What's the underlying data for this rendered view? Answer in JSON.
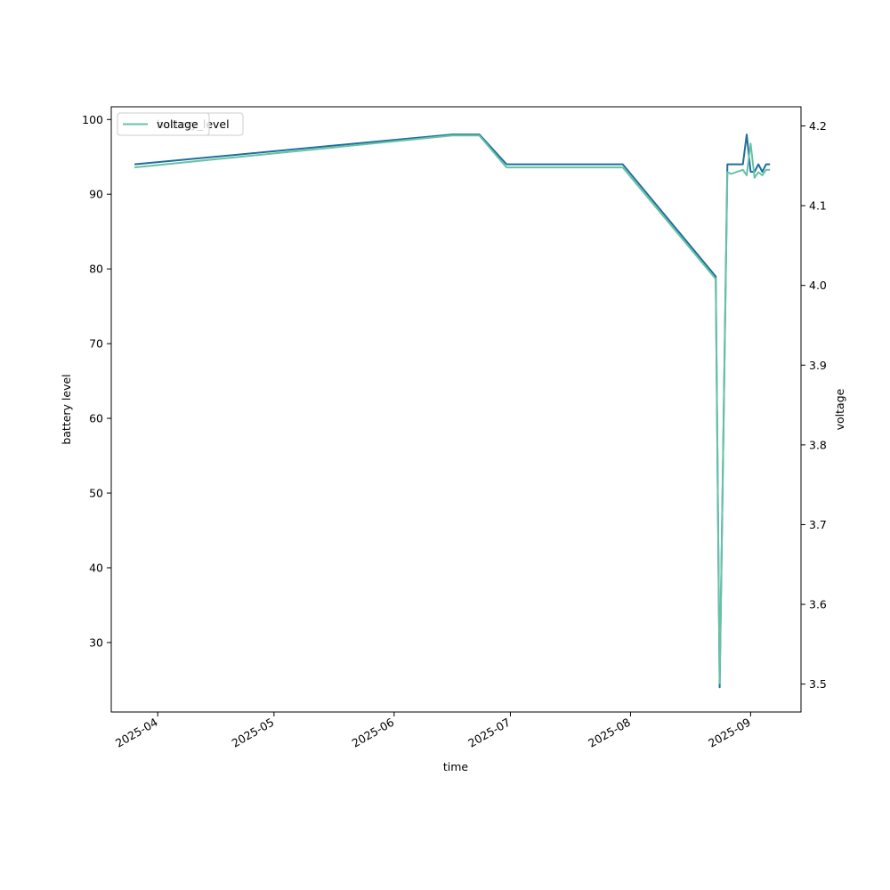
{
  "chart_data": {
    "type": "line",
    "xlabel": "time",
    "ylabel_left": "battery level",
    "ylabel_right": "voltage",
    "x_ticks": [
      "2025-04",
      "2025-05",
      "2025-06",
      "2025-07",
      "2025-08",
      "2025-09"
    ],
    "y_left_ticks": [
      30,
      40,
      50,
      60,
      70,
      80,
      90,
      100
    ],
    "y_right_ticks": [
      3.5,
      3.6,
      3.7,
      3.8,
      3.9,
      4.0,
      4.1,
      4.2
    ],
    "y_left_lim": [
      20.7,
      101.7
    ],
    "y_right_lim": [
      3.465,
      4.224
    ],
    "x_lim": [
      "2025-03-20",
      "2025-09-14"
    ],
    "legend_placement": "upper-left",
    "grid": false,
    "series": [
      {
        "name": "battery_level",
        "axis": "left",
        "color": "#1f6e9c",
        "points": [
          [
            "2025-03-26",
            94
          ],
          [
            "2025-06-16",
            98
          ],
          [
            "2025-06-23",
            98
          ],
          [
            "2025-06-30",
            94
          ],
          [
            "2025-07-30",
            94
          ],
          [
            "2025-08-23",
            79
          ],
          [
            "2025-08-24",
            24
          ],
          [
            "2025-08-26",
            94
          ],
          [
            "2025-08-30",
            94
          ],
          [
            "2025-08-31",
            98
          ],
          [
            "2025-09-01",
            93
          ],
          [
            "2025-09-02",
            93
          ],
          [
            "2025-09-03",
            94
          ],
          [
            "2025-09-04",
            93
          ],
          [
            "2025-09-05",
            94
          ],
          [
            "2025-09-06",
            94
          ]
        ]
      },
      {
        "name": "voltage",
        "axis": "right",
        "color": "#66c2a5",
        "points": [
          [
            "2025-03-26",
            4.148
          ],
          [
            "2025-06-16",
            4.188
          ],
          [
            "2025-06-23",
            4.188
          ],
          [
            "2025-06-30",
            4.148
          ],
          [
            "2025-07-30",
            4.148
          ],
          [
            "2025-08-23",
            4.008
          ],
          [
            "2025-08-24",
            3.501
          ],
          [
            "2025-08-26",
            4.142
          ],
          [
            "2025-08-27",
            4.14
          ],
          [
            "2025-08-30",
            4.145
          ],
          [
            "2025-08-31",
            4.138
          ],
          [
            "2025-09-01",
            4.178
          ],
          [
            "2025-09-02",
            4.135
          ],
          [
            "2025-09-03",
            4.142
          ],
          [
            "2025-09-04",
            4.138
          ],
          [
            "2025-09-05",
            4.145
          ],
          [
            "2025-09-06",
            4.145
          ]
        ]
      }
    ]
  }
}
